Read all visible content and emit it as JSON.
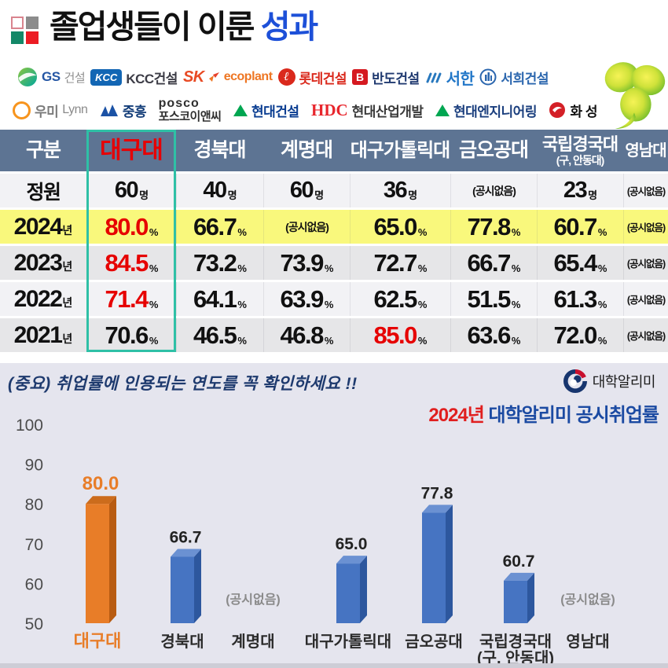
{
  "title": {
    "main": "졸업생들이 이룬 ",
    "accent": "성과"
  },
  "logo_squares": {
    "top_left_fill": "#ffffff",
    "top_left_border": "#d9848e",
    "top_right": "#8c8c8c",
    "bottom_left": "#148868",
    "bottom_right": "#ec1c24"
  },
  "partners_row1": [
    {
      "id": "gs",
      "icon": "gs-circle-icon",
      "text1": "GS",
      "color1": "#2456a4",
      "text2": "건설",
      "color2": "#909090"
    },
    {
      "id": "kcc",
      "icon": "kcc-badge-icon",
      "badge": "KCC",
      "text1": "KCC건설",
      "color1": "#3c3c46"
    },
    {
      "id": "sk",
      "icon": "sk-butterfly-icon",
      "text1": "SK",
      "color1": "#e84a24",
      "text2": "ecoplant",
      "color2": "#ee7623"
    },
    {
      "id": "lotte",
      "icon": "lotte-circle-icon",
      "badge": "ℓ",
      "text1": "롯데건설",
      "color1": "#da291c"
    },
    {
      "id": "bando",
      "icon": "bando-b-icon",
      "badge": "B",
      "text1": "반도건설",
      "color1": "#203a70"
    },
    {
      "id": "seohan",
      "icon": "seohan-waves-icon",
      "text1": "서한",
      "color1": "#2277c8"
    },
    {
      "id": "seohee",
      "icon": "seohee-building-icon",
      "text1": "서희건설",
      "color1": "#2b66ae"
    }
  ],
  "partners_row2": [
    {
      "id": "woomi",
      "icon": "woomi-ring-icon",
      "text1": "우미",
      "color1": "#7a7a7a",
      "text2": "Lynn",
      "color2": "#8a8a8a"
    },
    {
      "id": "jungheung",
      "icon": "jungheung-mountain-icon",
      "text1": "중흥",
      "color1": "#123c78"
    },
    {
      "id": "posco",
      "icon": "posco-wordmark",
      "text1": "posco",
      "color1": "#2f2f2f",
      "text2": "포스코이앤씨",
      "color2": "#2f2f2f"
    },
    {
      "id": "hyundai-const",
      "icon": "green-triangle-icon",
      "text1": "현대건설",
      "color1": "#0a3d91"
    },
    {
      "id": "hdc",
      "icon": "hdc-wordmark",
      "badge": "HDC",
      "text1": "현대산업개발",
      "color1": "#3a3a3a"
    },
    {
      "id": "hyundai-eng",
      "icon": "green-triangle-icon",
      "text1": "현대엔지니어링",
      "color1": "#1b3f7e"
    },
    {
      "id": "hwaseong",
      "icon": "hwaseong-swirl-icon",
      "text1": "화 성",
      "color1": "#111111"
    }
  ],
  "table": {
    "header": [
      "구분",
      "대구대",
      "경북대",
      "계명대",
      "대구가톨릭대",
      "금오공대",
      "국립경국대",
      "영남대"
    ],
    "header_sub_col": 6,
    "header_sub_text": "(구, 안동대)",
    "highlight_col": 1,
    "highlight_header_color": "#e60004",
    "header_bg": "#5d7493",
    "highlight_box_color": "#2fc0a6",
    "rows": [
      {
        "label": "정원",
        "label_unit": "",
        "bg": "#f2f2f5",
        "cells": [
          {
            "v": "60",
            "u": "명"
          },
          {
            "v": "40",
            "u": "명"
          },
          {
            "v": "60",
            "u": "명"
          },
          {
            "v": "36",
            "u": "명"
          },
          {
            "na": "(공시없음)"
          },
          {
            "v": "23",
            "u": "명"
          },
          {
            "na": "(공시없음)"
          }
        ]
      },
      {
        "label": "2024",
        "label_unit": "년",
        "bg": "#f9f87c",
        "cells": [
          {
            "v": "80.0",
            "u": "%",
            "c": "#e60000"
          },
          {
            "v": "66.7",
            "u": "%"
          },
          {
            "na": "(공시없음)"
          },
          {
            "v": "65.0",
            "u": "%"
          },
          {
            "v": "77.8",
            "u": "%"
          },
          {
            "v": "60.7",
            "u": "%"
          },
          {
            "na": "(공시없음)"
          }
        ]
      },
      {
        "label": "2023",
        "label_unit": "년",
        "bg": "#e6e6e8",
        "cells": [
          {
            "v": "84.5",
            "u": "%",
            "c": "#e60000"
          },
          {
            "v": "73.2",
            "u": "%"
          },
          {
            "v": "73.9",
            "u": "%"
          },
          {
            "v": "72.7",
            "u": "%"
          },
          {
            "v": "66.7",
            "u": "%"
          },
          {
            "v": "65.4",
            "u": "%"
          },
          {
            "na": "(공시없음)"
          }
        ]
      },
      {
        "label": "2022",
        "label_unit": "년",
        "bg": "#f2f2f5",
        "cells": [
          {
            "v": "71.4",
            "u": "%",
            "c": "#e60000"
          },
          {
            "v": "64.1",
            "u": "%"
          },
          {
            "v": "63.9",
            "u": "%"
          },
          {
            "v": "62.5",
            "u": "%"
          },
          {
            "v": "51.5",
            "u": "%"
          },
          {
            "v": "61.3",
            "u": "%"
          },
          {
            "na": "(공시없음)"
          }
        ]
      },
      {
        "label": "2021",
        "label_unit": "년",
        "bg": "#e6e6e8",
        "cells": [
          {
            "v": "70.6",
            "u": "%"
          },
          {
            "v": "46.5",
            "u": "%"
          },
          {
            "v": "46.8",
            "u": "%"
          },
          {
            "v": "85.0",
            "u": "%",
            "c": "#e60000"
          },
          {
            "v": "63.6",
            "u": "%"
          },
          {
            "v": "72.0",
            "u": "%"
          },
          {
            "na": "(공시없음)"
          }
        ]
      }
    ]
  },
  "notice": {
    "text": "(중요) 취업률에 인용되는 연도를 꼭 확인하세요 !!"
  },
  "source": {
    "logo": "대학알리미",
    "subtitle_year": "2024년",
    "subtitle_rest": " 대학알리미 공시취업률"
  },
  "chart_data": {
    "type": "bar",
    "title": "2024년 대학알리미 공시취업률",
    "categories": [
      "대구대",
      "경북대",
      "계명대",
      "대구가톨릭대",
      "금오공대",
      "국립경국대\n(구, 안동대)",
      "영남대"
    ],
    "values": [
      80.0,
      66.7,
      null,
      65.0,
      77.8,
      60.7,
      null
    ],
    "na_label": "(공시없음)",
    "ylim": [
      50,
      100
    ],
    "yticks": [
      100,
      90,
      80,
      70,
      60,
      50
    ],
    "grid": false,
    "legend": false,
    "highlight_index": 0,
    "highlight_color": {
      "front": "#e87d28",
      "side": "#b85c12",
      "top": "#cc6c1c"
    },
    "bar_color": {
      "front": "#4674c2",
      "side": "#2d579e",
      "top": "#6b91d2"
    },
    "background": "#e5e5ee"
  }
}
